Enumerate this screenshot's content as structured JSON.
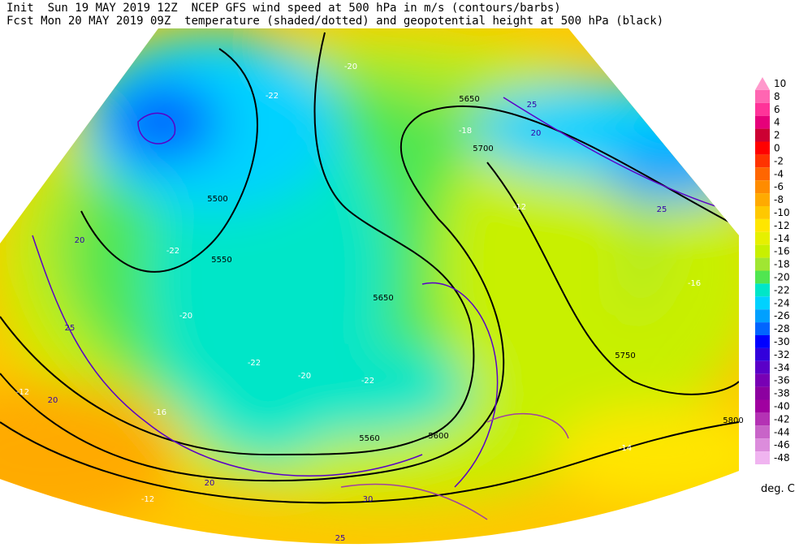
{
  "header": {
    "line1": "Init  Sun 19 MAY 2019 12Z  NCEP GFS wind speed at 500 hPa in m/s (contours/barbs)",
    "line2": "Fcst Mon 20 MAY 2019 09Z  temperature (shaded/dotted) and geopotential height at 500 hPa (black)"
  },
  "colorbar": {
    "unit": "deg. C",
    "levels": [
      {
        "label": "10",
        "color": "#ff99cc"
      },
      {
        "label": "8",
        "color": "#ff66b2"
      },
      {
        "label": "6",
        "color": "#ff3399"
      },
      {
        "label": "4",
        "color": "#e6007a"
      },
      {
        "label": "2",
        "color": "#cc0033"
      },
      {
        "label": "0",
        "color": "#ff0000"
      },
      {
        "label": "-2",
        "color": "#ff3300"
      },
      {
        "label": "-4",
        "color": "#ff6600"
      },
      {
        "label": "-6",
        "color": "#ff8c00"
      },
      {
        "label": "-8",
        "color": "#ffaa00"
      },
      {
        "label": "-10",
        "color": "#ffc800"
      },
      {
        "label": "-12",
        "color": "#ffe600"
      },
      {
        "label": "-14",
        "color": "#e6f000"
      },
      {
        "label": "-16",
        "color": "#c8f000"
      },
      {
        "label": "-18",
        "color": "#a0e632"
      },
      {
        "label": "-20",
        "color": "#50e650"
      },
      {
        "label": "-22",
        "color": "#00e6c8"
      },
      {
        "label": "-24",
        "color": "#00d2ff"
      },
      {
        "label": "-26",
        "color": "#00a0ff"
      },
      {
        "label": "-28",
        "color": "#0064ff"
      },
      {
        "label": "-30",
        "color": "#0000ff"
      },
      {
        "label": "-32",
        "color": "#3200dc"
      },
      {
        "label": "-34",
        "color": "#5a00c8"
      },
      {
        "label": "-36",
        "color": "#7800b4"
      },
      {
        "label": "-38",
        "color": "#8c00a0"
      },
      {
        "label": "-40",
        "color": "#a000a0"
      },
      {
        "label": "-42",
        "color": "#b432b4"
      },
      {
        "label": "-44",
        "color": "#c864c8"
      },
      {
        "label": "-46",
        "color": "#dc8cdc"
      },
      {
        "label": "-48",
        "color": "#f0b4f0"
      }
    ]
  },
  "map_labels": {
    "height": [
      "5500",
      "5550",
      "5650",
      "5700",
      "5650",
      "5560",
      "5600",
      "5750",
      "5800"
    ],
    "temperature": [
      "-20",
      "-22",
      "-18",
      "-12",
      "-16",
      "-22",
      "-20",
      "-22",
      "-20",
      "-22",
      "-12",
      "-16",
      "-14",
      "-12"
    ],
    "wind": [
      "20",
      "25",
      "20",
      "25",
      "20",
      "25",
      "20",
      "30",
      "25"
    ]
  }
}
